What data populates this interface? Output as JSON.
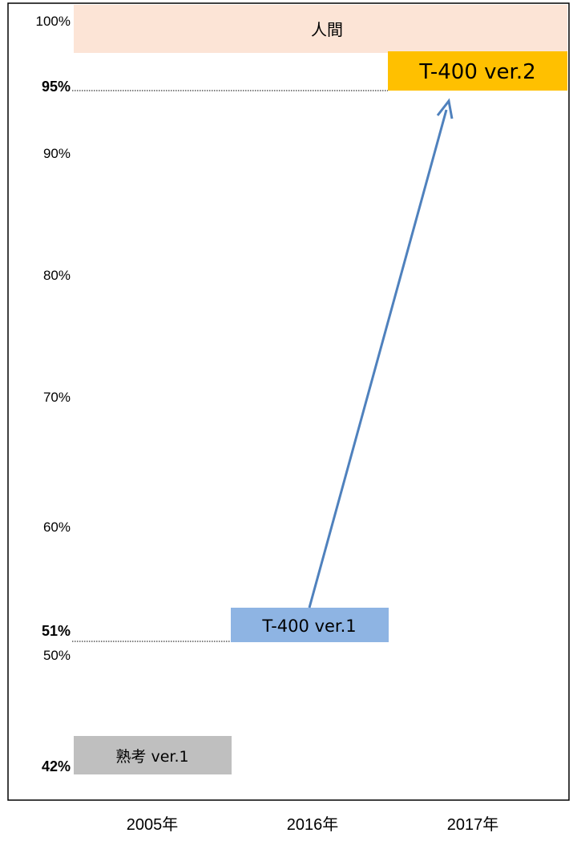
{
  "chart_data": {
    "type": "bar",
    "title": "",
    "xlabel": "",
    "ylabel": "",
    "ylim": [
      40,
      100
    ],
    "y_scale": "piecewise",
    "grid": false,
    "legend": "none",
    "y_ticks": [
      {
        "value": 100,
        "label": "100%",
        "bold": false
      },
      {
        "value": 95,
        "label": "95%",
        "bold": true
      },
      {
        "value": 90,
        "label": "90%",
        "bold": false
      },
      {
        "value": 80,
        "label": "80%",
        "bold": false
      },
      {
        "value": 70,
        "label": "70%",
        "bold": false
      },
      {
        "value": 60,
        "label": "60%",
        "bold": false
      },
      {
        "value": 51,
        "label": "51%",
        "bold": true
      },
      {
        "value": 50,
        "label": "50%",
        "bold": false
      },
      {
        "value": 42,
        "label": "42%",
        "bold": true
      }
    ],
    "categories": [
      "2005年",
      "2016年",
      "2017年"
    ],
    "bars": [
      {
        "label": "熟考  ver.1",
        "category": "2005年",
        "value": 42,
        "color": "#bfbfbf"
      },
      {
        "label": "T-400 ver.1",
        "category": "2016年",
        "value": 51,
        "color": "#8eb4e3"
      },
      {
        "label": "T-400 ver.2",
        "category": "2017年",
        "value": 95,
        "color": "#ffc000"
      }
    ],
    "reference_band": {
      "label": "人間",
      "value": 100,
      "color": "#fce4d6"
    },
    "reference_lines": [
      51,
      95
    ],
    "arrow": {
      "from": "2016年",
      "to": "2017年",
      "color": "#4f81bd"
    }
  }
}
